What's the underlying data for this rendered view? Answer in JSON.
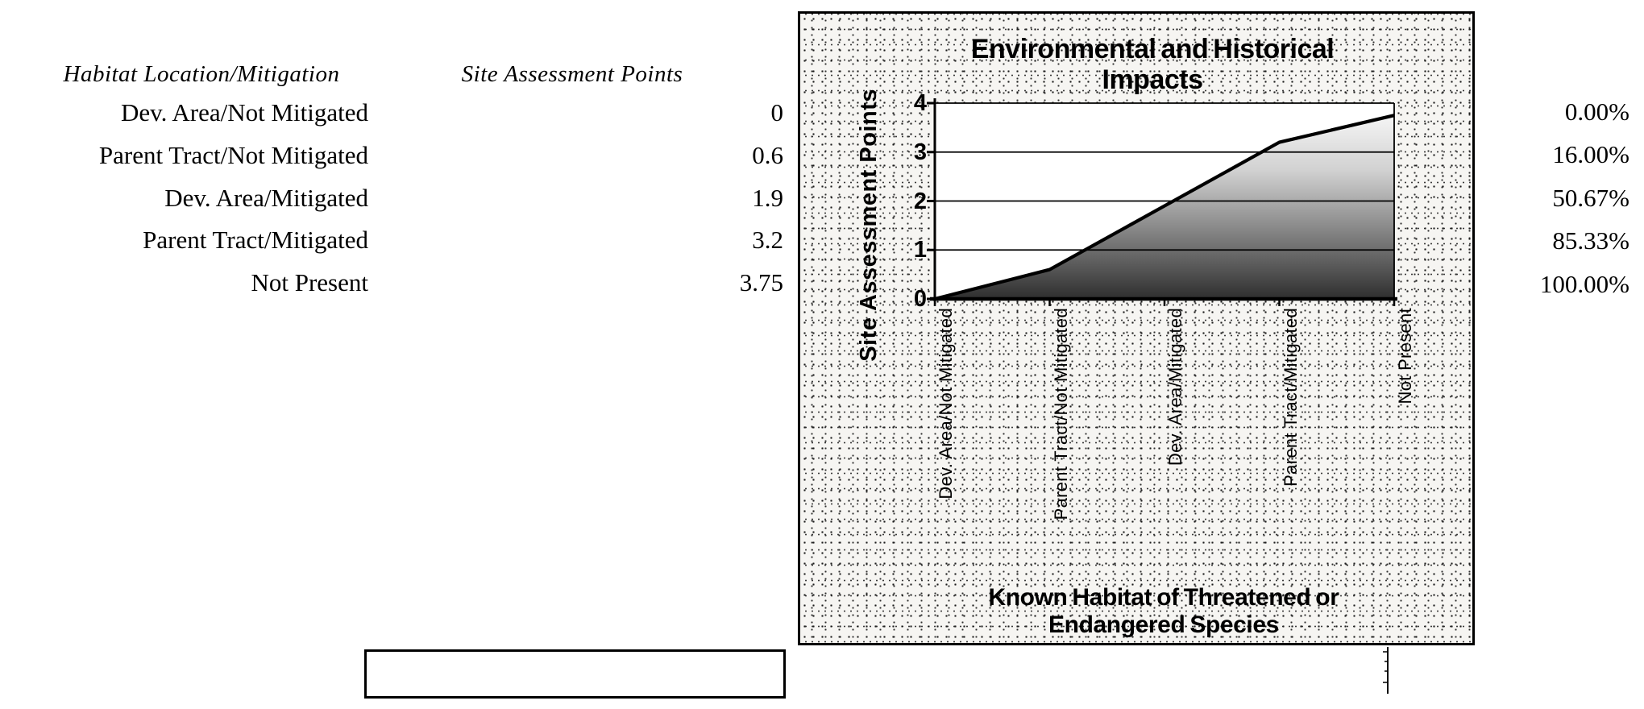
{
  "table": {
    "headers": {
      "col1": "Habitat Location/Mitigation",
      "col2": "Site Assessment Points"
    },
    "rows": [
      {
        "label": "Dev. Area/Not Mitigated",
        "points": "0",
        "percent": "0.00%"
      },
      {
        "label": "Parent Tract/Not Mitigated",
        "points": "0.6",
        "percent": "16.00%"
      },
      {
        "label": "Dev. Area/Mitigated",
        "points": "1.9",
        "percent": "50.67%"
      },
      {
        "label": "Parent Tract/Mitigated",
        "points": "3.2",
        "percent": "85.33%"
      },
      {
        "label": "Not Present",
        "points": "3.75",
        "percent": "100.00%"
      }
    ]
  },
  "chart_data": {
    "type": "area",
    "title": "Environmental and Historical Impacts",
    "xlabel": "Known Habitat of Threatened or Endangered Species",
    "ylabel": "Site Assessment Points",
    "categories": [
      "Dev. Area/Not Mitigated",
      "Parent Tract/Not Mitigated",
      "Dev. Area/Mitigated",
      "Parent Tract/Mitigated",
      "Not Present"
    ],
    "values": [
      0,
      0.6,
      1.9,
      3.2,
      3.75
    ],
    "ylim": [
      0,
      4
    ],
    "yticks": [
      0,
      1,
      2,
      3,
      4
    ],
    "grid": true,
    "legend": false,
    "fill": "vertical gradient, dark at bottom fading to light at top",
    "line_color": "#000000"
  },
  "colors": {
    "ink": "#000000",
    "chart_background": "#f6f5f2",
    "plot_background": "#ffffff"
  }
}
